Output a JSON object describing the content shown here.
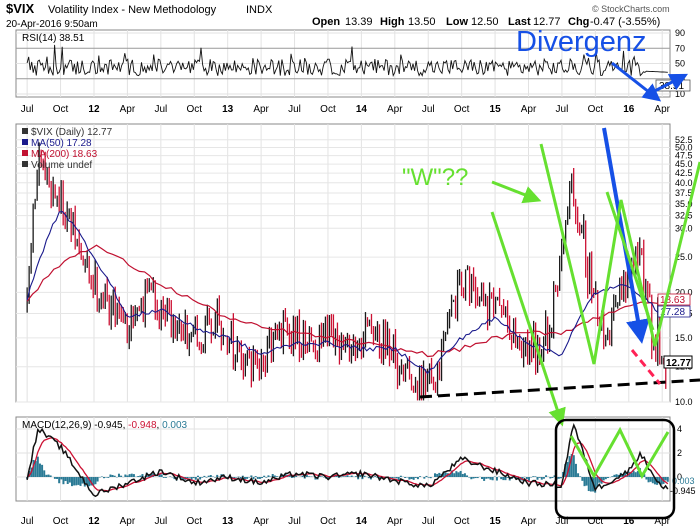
{
  "header": {
    "symbol": "$VIX",
    "name": "Volatility Index - New Methodology",
    "exchange": "INDX",
    "date": "20-Apr-2016 9:50am",
    "open_label": "Open",
    "open": "13.39",
    "high_label": "High",
    "high": "13.50",
    "low_label": "Low",
    "low": "12.50",
    "last_label": "Last",
    "last": "12.77",
    "chg_label": "Chg",
    "chg": "-0.47 (-3.55%)",
    "watermark": "© StockCharts.com"
  },
  "rsi_panel": {
    "label": "RSI(14) 38.51",
    "ticks": [
      90,
      70,
      50,
      30,
      10
    ],
    "value_badge": "38.51"
  },
  "price_panel": {
    "legend": [
      {
        "text": "$VIX (Daily) 12.77",
        "color": "#333333"
      },
      {
        "text": "MA(50) 17.28",
        "color": "#1a1a8c"
      },
      {
        "text": "MA(200) 18.63",
        "color": "#c01030"
      },
      {
        "text": "Volume undef",
        "color": "#333333"
      }
    ],
    "ticks": [
      "52.5",
      "50.0",
      "47.5",
      "45.0",
      "42.5",
      "40.0",
      "37.5",
      "35.0",
      "32.5",
      "30.0",
      "25.0",
      "20.0",
      "17.5",
      "15.0",
      "12.5",
      "10.0"
    ],
    "badges": {
      "ma200": "18.63",
      "ma50": "17.28",
      "last": "12.77"
    }
  },
  "macd_panel": {
    "label_prefix": "MACD(12,26,9)",
    "macd": "-0.945",
    "signal": "-0.948",
    "hist": "0.003",
    "ticks": [
      "4",
      "2",
      "0"
    ],
    "badges": {
      "hist": "0.003",
      "macd": "-0.945"
    }
  },
  "x_axis": {
    "labels": [
      "Jul",
      "Oct",
      "12",
      "Apr",
      "Jul",
      "Oct",
      "13",
      "Apr",
      "Jul",
      "Oct",
      "14",
      "Apr",
      "Jul",
      "Oct",
      "15",
      "Apr",
      "Jul",
      "Oct",
      "16",
      "Apr"
    ]
  },
  "annotations": {
    "divergence_text": "Divergenz",
    "w_text": "\"W\"??"
  },
  "colors": {
    "price_bar": "#1a1a1a",
    "price_bar_down": "#cc1133",
    "ma50": "#1a1a8c",
    "ma200": "#c01030",
    "macd": "#111111",
    "signal": "#cc1133",
    "histogram": "#2a7a95",
    "annotation_green": "#66e030",
    "annotation_blue": "#1650e6",
    "annotation_red": "#ff2255"
  },
  "chart_data": {
    "type": "line",
    "title": "$VIX Volatility Index - New Methodology INDX",
    "x_range": [
      "2011-06",
      "2016-04"
    ],
    "price_ylim": [
      10,
      52.5
    ],
    "price_scale": "log",
    "series": [
      {
        "name": "$VIX (Daily)",
        "x": [
          "2011-07",
          "2011-08",
          "2011-10",
          "2011-12",
          "2012-02",
          "2012-04",
          "2012-06",
          "2012-08",
          "2012-10",
          "2012-12",
          "2013-02",
          "2013-04",
          "2013-06",
          "2013-08",
          "2013-10",
          "2013-12",
          "2014-02",
          "2014-04",
          "2014-06",
          "2014-08",
          "2014-10",
          "2014-12",
          "2015-02",
          "2015-04",
          "2015-06",
          "2015-08",
          "2015-09",
          "2015-11",
          "2016-01",
          "2016-02",
          "2016-03",
          "2016-04"
        ],
        "values": [
          18,
          44,
          36,
          24,
          19,
          16,
          20,
          16,
          15,
          17,
          13,
          13,
          16,
          14,
          15,
          13,
          16,
          13,
          11,
          12,
          22,
          19,
          17,
          13,
          14,
          40,
          24,
          15,
          22,
          26,
          15,
          12.77
        ]
      },
      {
        "name": "MA(50)",
        "x": [
          "2011-07",
          "2011-10",
          "2012-01",
          "2012-04",
          "2012-07",
          "2012-10",
          "2013-01",
          "2013-04",
          "2013-07",
          "2013-10",
          "2014-01",
          "2014-04",
          "2014-07",
          "2014-10",
          "2015-01",
          "2015-04",
          "2015-07",
          "2015-10",
          "2016-01",
          "2016-04"
        ],
        "values": [
          19,
          34,
          25,
          17,
          18,
          16,
          15,
          13.5,
          14.5,
          14.5,
          14,
          14,
          12,
          15,
          17,
          14.5,
          13.5,
          20,
          21,
          17.28
        ]
      },
      {
        "name": "MA(200)",
        "x": [
          "2011-07",
          "2011-10",
          "2012-01",
          "2012-04",
          "2012-07",
          "2012-10",
          "2013-01",
          "2013-04",
          "2013-07",
          "2013-10",
          "2014-01",
          "2014-04",
          "2014-07",
          "2014-10",
          "2015-01",
          "2015-04",
          "2015-07",
          "2015-10",
          "2016-01",
          "2016-04"
        ],
        "values": [
          19,
          24,
          27,
          24,
          21,
          19,
          17,
          16,
          15.5,
          15,
          14.5,
          14,
          13.5,
          14,
          15,
          15.5,
          15.5,
          17,
          18.5,
          18.63
        ]
      },
      {
        "name": "MACD(12,26,9)",
        "panel": "macd",
        "x": [
          "2011-07",
          "2011-08",
          "2011-10",
          "2012-01",
          "2012-04",
          "2012-07",
          "2012-10",
          "2013-01",
          "2013-04",
          "2013-07",
          "2013-10",
          "2014-01",
          "2014-04",
          "2014-07",
          "2014-10",
          "2015-01",
          "2015-04",
          "2015-07",
          "2015-08",
          "2015-10",
          "2016-01",
          "2016-02",
          "2016-04"
        ],
        "values": [
          0,
          4,
          2.5,
          -1.5,
          -0.5,
          0.5,
          -0.5,
          0,
          -0.5,
          0.3,
          0,
          0.3,
          -0.3,
          -0.8,
          1.5,
          0.5,
          -0.5,
          -0.7,
          4.5,
          -1,
          0.5,
          2,
          -0.945
        ]
      }
    ],
    "rsi_ylim": [
      10,
      90
    ],
    "macd_ylim": [
      -2,
      5
    ],
    "legend_placement": "top-left"
  }
}
